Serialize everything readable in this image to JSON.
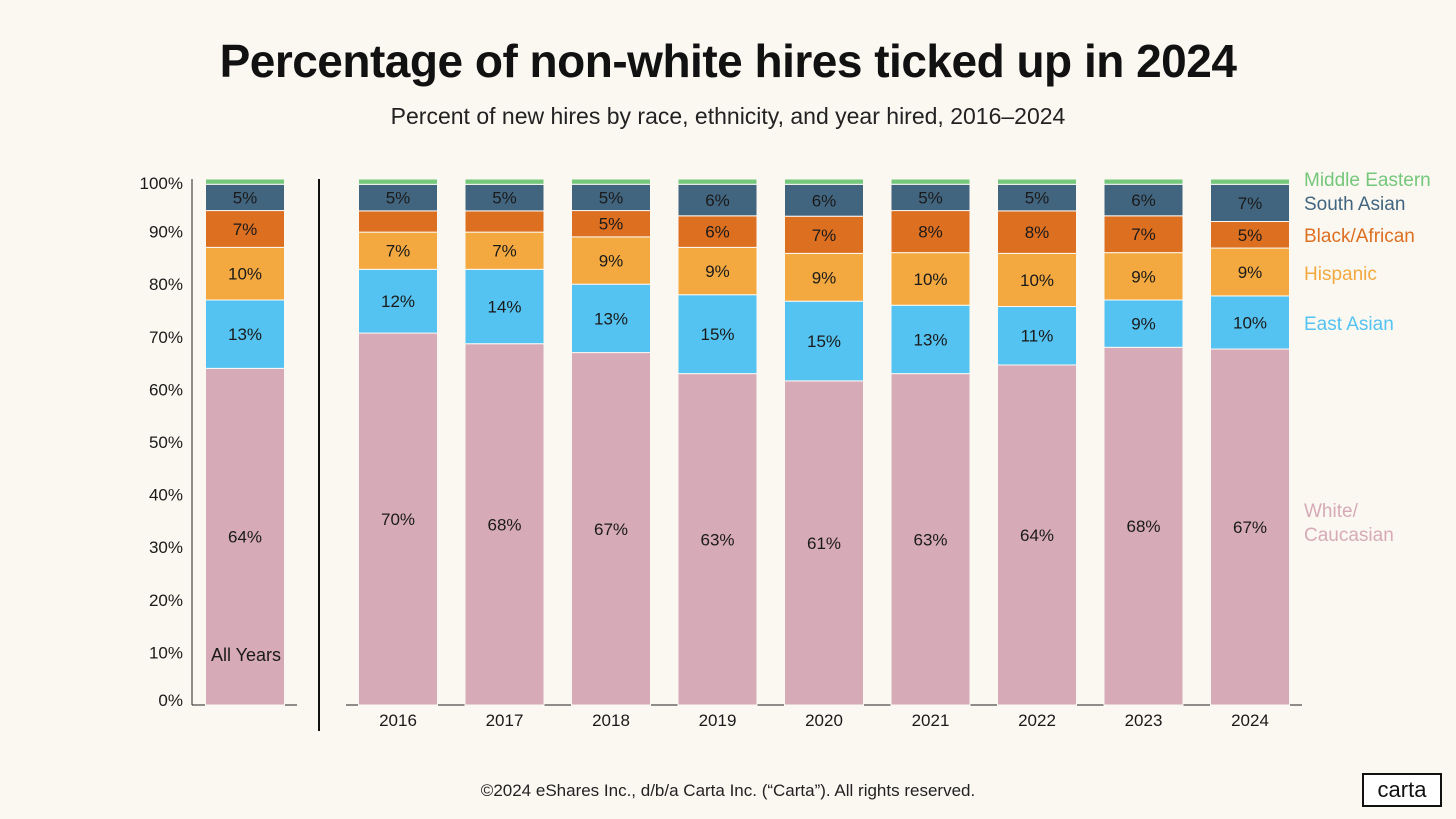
{
  "title": "Percentage of non-white hires ticked up in 2024",
  "subtitle": "Percent of new hires by race, ethnicity, and year hired, 2016–2024",
  "footer": "©2024 eShares Inc., d/b/a Carta Inc. (“Carta”). All rights reserved.",
  "logo": "carta",
  "chart_data": {
    "type": "bar",
    "stacked": true,
    "y_ticks": [
      "0%",
      "10%",
      "20%",
      "30%",
      "40%",
      "50%",
      "60%",
      "70%",
      "80%",
      "90%",
      "100%"
    ],
    "ylim": [
      0,
      100
    ],
    "grid": false,
    "legend_position": "right",
    "summary_bar": {
      "label": "All Years",
      "values": [
        64,
        13,
        10,
        7,
        5,
        1
      ],
      "labels": [
        "64%",
        "13%",
        "10%",
        "7%",
        "5%",
        ""
      ]
    },
    "categories": [
      "2016",
      "2017",
      "2018",
      "2019",
      "2020",
      "2021",
      "2022",
      "2023",
      "2024"
    ],
    "series": [
      {
        "name": "White/ Caucasian",
        "color": "#d6aab7",
        "values": [
          70,
          68,
          67,
          63,
          61,
          63,
          64,
          68,
          67
        ]
      },
      {
        "name": "East Asian",
        "color": "#54c3f1",
        "values": [
          12,
          14,
          13,
          15,
          15,
          13,
          11,
          9,
          10
        ]
      },
      {
        "name": "Hispanic",
        "color": "#f3a940",
        "values": [
          7,
          7,
          9,
          9,
          9,
          10,
          10,
          9,
          9
        ]
      },
      {
        "name": "Black/African",
        "color": "#dd6f21",
        "values": [
          4,
          4,
          5,
          6,
          7,
          8,
          8,
          7,
          5
        ]
      },
      {
        "name": "South Asian",
        "color": "#42657f",
        "values": [
          5,
          5,
          5,
          6,
          6,
          5,
          5,
          6,
          7
        ]
      },
      {
        "name": "Middle Eastern",
        "color": "#75c77b",
        "values": [
          1,
          1,
          1,
          1,
          1,
          1,
          1,
          1,
          1
        ]
      }
    ],
    "value_labels": [
      [
        "70%",
        "68%",
        "67%",
        "63%",
        "61%",
        "63%",
        "64%",
        "68%",
        "67%"
      ],
      [
        "12%",
        "14%",
        "13%",
        "15%",
        "15%",
        "13%",
        "11%",
        "9%",
        "10%"
      ],
      [
        "7%",
        "7%",
        "9%",
        "9%",
        "9%",
        "10%",
        "10%",
        "9%",
        "9%"
      ],
      [
        "",
        "",
        "5%",
        "6%",
        "7%",
        "8%",
        "8%",
        "7%",
        "5%"
      ],
      [
        "5%",
        "5%",
        "5%",
        "6%",
        "6%",
        "5%",
        "5%",
        "6%",
        "7%"
      ],
      [
        "",
        "",
        "",
        "",
        "",
        "",
        "",
        "",
        ""
      ]
    ]
  }
}
